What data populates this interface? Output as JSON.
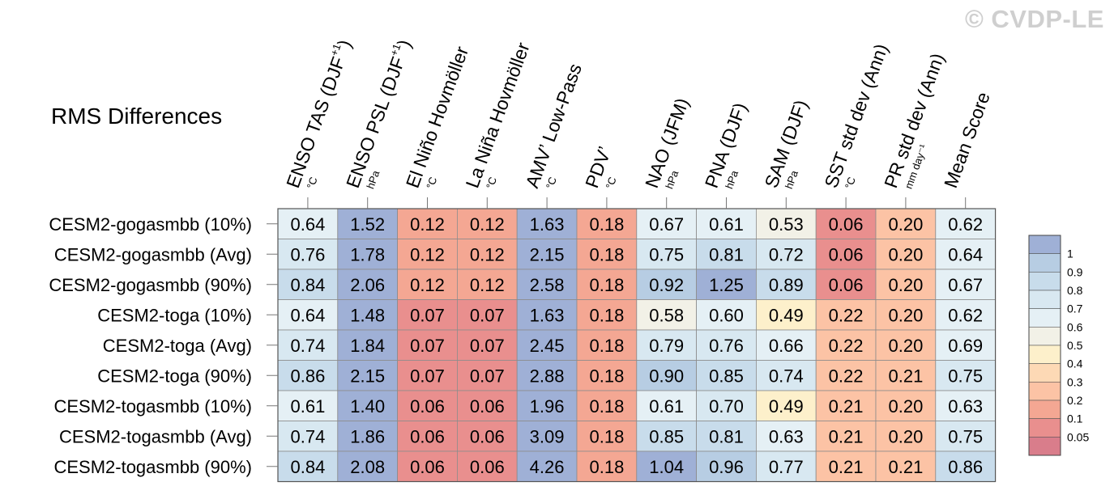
{
  "watermark": "© CVDP-LE",
  "chart_data": {
    "type": "heatmap",
    "title": "RMS Differences",
    "columns": [
      {
        "label": "ENSO TAS (DJF",
        "sup": "+1",
        "close": ")",
        "unit": "°C"
      },
      {
        "label": "ENSO PSL (DJF",
        "sup": "+1",
        "close": ")",
        "unit": "hPa"
      },
      {
        "label": "El Niño Hovmöller",
        "sup": "",
        "close": "",
        "unit": "°C"
      },
      {
        "label": "La Niña Hovmöller",
        "sup": "",
        "close": "",
        "unit": "°C"
      },
      {
        "label": "AMV’ Low-Pass",
        "sup": "",
        "close": "",
        "unit": "°C"
      },
      {
        "label": "PDV’",
        "sup": "",
        "close": "",
        "unit": "°C"
      },
      {
        "label": "NAO (JFM)",
        "sup": "",
        "close": "",
        "unit": "hPa"
      },
      {
        "label": "PNA (DJF)",
        "sup": "",
        "close": "",
        "unit": "hPa"
      },
      {
        "label": "SAM (DJF)",
        "sup": "",
        "close": "",
        "unit": "hPa"
      },
      {
        "label": "SST std dev (Ann)",
        "sup": "",
        "close": "",
        "unit": "°C"
      },
      {
        "label": "PR std dev (Ann)",
        "sup": "",
        "close": "",
        "unit": "mm day⁻¹"
      },
      {
        "label": "Mean Score",
        "sup": "",
        "close": "",
        "unit": ""
      }
    ],
    "rows": [
      "CESM2-gogasmbb (10%)",
      "CESM2-gogasmbb (Avg)",
      "CESM2-gogasmbb (90%)",
      "CESM2-toga (10%)",
      "CESM2-toga (Avg)",
      "CESM2-toga (90%)",
      "CESM2-togasmbb (10%)",
      "CESM2-togasmbb (Avg)",
      "CESM2-togasmbb (90%)"
    ],
    "values": [
      [
        0.64,
        1.52,
        0.12,
        0.12,
        1.63,
        0.18,
        0.67,
        0.61,
        0.53,
        0.06,
        0.2,
        0.62
      ],
      [
        0.76,
        1.78,
        0.12,
        0.12,
        2.15,
        0.18,
        0.75,
        0.81,
        0.72,
        0.06,
        0.2,
        0.64
      ],
      [
        0.84,
        2.06,
        0.12,
        0.12,
        2.58,
        0.18,
        0.92,
        1.25,
        0.89,
        0.06,
        0.2,
        0.67
      ],
      [
        0.64,
        1.48,
        0.07,
        0.07,
        1.63,
        0.18,
        0.58,
        0.6,
        0.49,
        0.22,
        0.2,
        0.62
      ],
      [
        0.74,
        1.84,
        0.07,
        0.07,
        2.45,
        0.18,
        0.79,
        0.76,
        0.66,
        0.22,
        0.2,
        0.69
      ],
      [
        0.86,
        2.15,
        0.07,
        0.07,
        2.88,
        0.18,
        0.9,
        0.85,
        0.74,
        0.22,
        0.21,
        0.75
      ],
      [
        0.61,
        1.4,
        0.06,
        0.06,
        1.96,
        0.18,
        0.61,
        0.7,
        0.49,
        0.21,
        0.2,
        0.63
      ],
      [
        0.74,
        1.86,
        0.06,
        0.06,
        3.09,
        0.18,
        0.85,
        0.81,
        0.63,
        0.21,
        0.2,
        0.75
      ],
      [
        0.84,
        2.08,
        0.06,
        0.06,
        4.26,
        0.18,
        1.04,
        0.96,
        0.77,
        0.21,
        0.21,
        0.86
      ]
    ],
    "colorbar": {
      "tick_labels": [
        "1",
        "0.9",
        "0.8",
        "0.7",
        "0.6",
        "0.5",
        "0.4",
        "0.3",
        "0.2",
        "0.1",
        "0.05"
      ],
      "bin_colors": [
        "#9fb0d6",
        "#b7cde3",
        "#c8dceb",
        "#d8e8f1",
        "#e5f0f5",
        "#f2f1e7",
        "#fdf0cb",
        "#fdd9b5",
        "#fcc3a5",
        "#f4a793",
        "#e98f8e",
        "#d97d8b"
      ],
      "thresholds": [
        1,
        0.9,
        0.8,
        0.7,
        0.6,
        0.5,
        0.4,
        0.3,
        0.2,
        0.1,
        0.05
      ]
    }
  }
}
